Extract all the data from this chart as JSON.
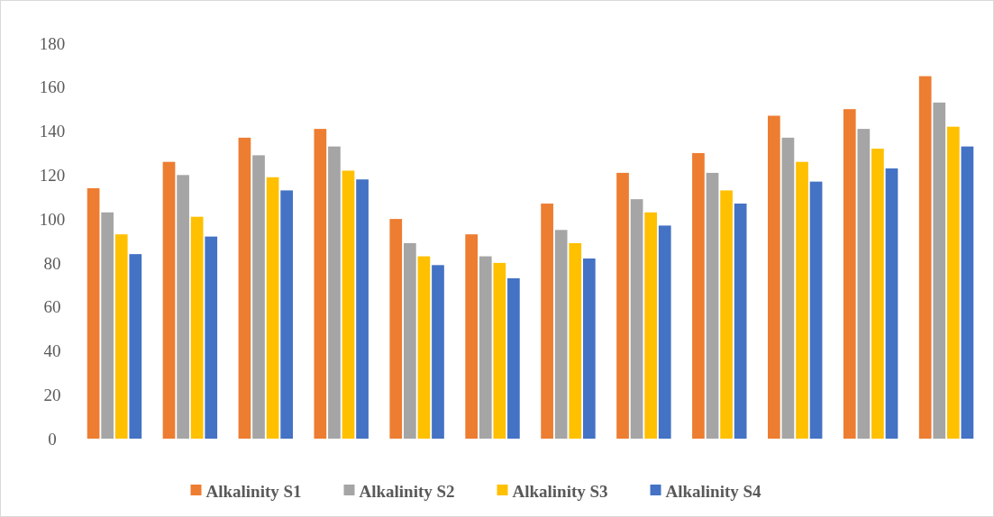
{
  "chart_data": {
    "type": "bar",
    "categories": [
      null,
      null,
      null,
      null,
      null,
      null,
      null,
      null,
      null,
      null,
      null,
      null
    ],
    "series": [
      {
        "name": "Alkalinity S1",
        "color": "#ed7d31",
        "values": [
          114,
          126,
          137,
          141,
          100,
          93,
          107,
          121,
          130,
          147,
          150,
          165
        ]
      },
      {
        "name": "Alkalinity S2",
        "color": "#a5a5a5",
        "values": [
          103,
          120,
          129,
          133,
          89,
          83,
          95,
          109,
          121,
          137,
          141,
          153
        ]
      },
      {
        "name": "Alkalinity S3",
        "color": "#ffc000",
        "values": [
          93,
          101,
          119,
          122,
          83,
          80,
          89,
          103,
          113,
          126,
          132,
          142
        ]
      },
      {
        "name": "Alkalinity S4",
        "color": "#4472c4",
        "values": [
          84,
          92,
          113,
          118,
          79,
          73,
          82,
          97,
          107,
          117,
          123,
          133
        ]
      }
    ],
    "ylim": [
      0,
      180
    ],
    "yticks": [
      0,
      20,
      40,
      60,
      80,
      100,
      120,
      140,
      160,
      180
    ],
    "legend": "bottom"
  }
}
